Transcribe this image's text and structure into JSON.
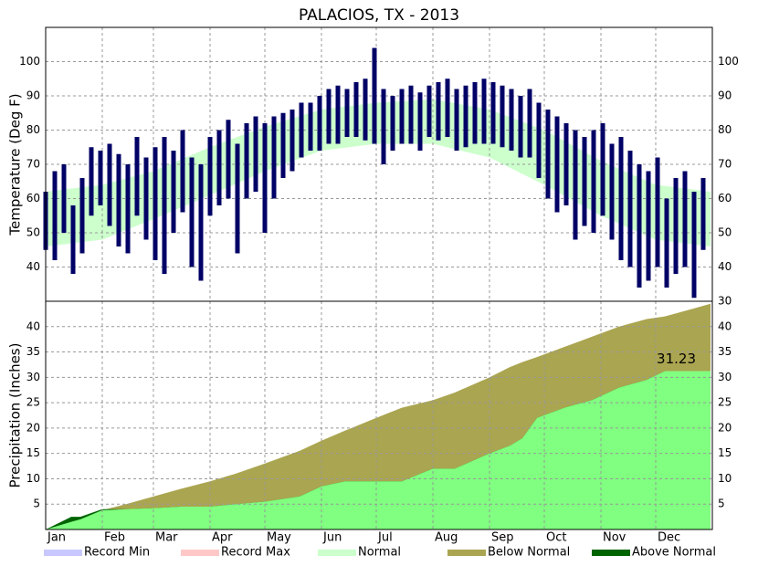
{
  "chart_data": [
    {
      "type": "bar",
      "title": "PALACIOS, TX - 2013",
      "y_label": "Temperature (Deg F)",
      "x": [
        1,
        6,
        11,
        16,
        21,
        26,
        31,
        36,
        41,
        46,
        51,
        56,
        61,
        66,
        71,
        76,
        81,
        86,
        91,
        96,
        101,
        106,
        111,
        116,
        121,
        126,
        131,
        136,
        141,
        146,
        151,
        156,
        161,
        166,
        171,
        176,
        181,
        186,
        191,
        196,
        201,
        206,
        211,
        216,
        221,
        226,
        231,
        236,
        241,
        246,
        251,
        256,
        261,
        266,
        271,
        276,
        281,
        286,
        291,
        296,
        301,
        306,
        311,
        316,
        321,
        326,
        331,
        336,
        341,
        346,
        351,
        356,
        361
      ],
      "highs": [
        62,
        68,
        70,
        58,
        66,
        75,
        74,
        76,
        73,
        70,
        78,
        72,
        75,
        78,
        74,
        80,
        72,
        70,
        78,
        80,
        83,
        76,
        82,
        84,
        82,
        84,
        85,
        86,
        88,
        88,
        90,
        92,
        93,
        92,
        94,
        95,
        104,
        92,
        90,
        92,
        93,
        91,
        93,
        94,
        95,
        92,
        93,
        94,
        95,
        94,
        93,
        92,
        90,
        92,
        88,
        86,
        84,
        82,
        80,
        78,
        80,
        82,
        76,
        78,
        74,
        70,
        68,
        72,
        60,
        66,
        68,
        62,
        66
      ],
      "lows": [
        45,
        42,
        50,
        38,
        44,
        55,
        58,
        52,
        46,
        44,
        55,
        48,
        42,
        38,
        50,
        56,
        40,
        36,
        55,
        58,
        60,
        44,
        60,
        62,
        50,
        60,
        66,
        68,
        72,
        74,
        74,
        76,
        76,
        78,
        78,
        77,
        76,
        70,
        74,
        76,
        76,
        74,
        78,
        77,
        78,
        74,
        75,
        76,
        76,
        76,
        75,
        74,
        72,
        72,
        66,
        60,
        56,
        58,
        48,
        52,
        50,
        55,
        48,
        42,
        40,
        34,
        36,
        40,
        34,
        38,
        40,
        31,
        45
      ],
      "color": "#000066",
      "normal": {
        "x": [
          1,
          32,
          60,
          91,
          121,
          152,
          182,
          213,
          244,
          274,
          305,
          335,
          365
        ],
        "high": [
          62,
          64,
          68,
          75,
          81,
          86,
          88,
          89,
          86,
          80,
          71,
          64,
          62
        ],
        "low": [
          46,
          48,
          54,
          61,
          68,
          74,
          76,
          76,
          72,
          64,
          55,
          48,
          46
        ],
        "color": "#ccffcc"
      },
      "xlim": [
        1,
        366
      ],
      "ylim": [
        30,
        110
      ],
      "yticks": [
        30,
        40,
        50,
        60,
        70,
        80,
        90,
        100
      ],
      "grid": true
    },
    {
      "type": "area",
      "y_label": "Precipitation (Inches)",
      "x": [
        1,
        15,
        20,
        32,
        45,
        60,
        75,
        91,
        105,
        121,
        140,
        152,
        165,
        182,
        196,
        213,
        225,
        244,
        255,
        262,
        270,
        285,
        300,
        315,
        330,
        340,
        365
      ],
      "actual": [
        0,
        2.5,
        2.5,
        4,
        4,
        4.2,
        4.5,
        4.5,
        5,
        5.5,
        6.5,
        8.5,
        9.5,
        9.5,
        9.5,
        12,
        12,
        15,
        16.5,
        18,
        22,
        24,
        25.5,
        28,
        29.5,
        31.23,
        31.23
      ],
      "normal": [
        0,
        1.5,
        2,
        3.8,
        5,
        6.5,
        8,
        9.5,
        11,
        13,
        15.5,
        17.5,
        19.5,
        22,
        24,
        25.5,
        27,
        30,
        32,
        33,
        34,
        36,
        38,
        40,
        41.5,
        42,
        44.5
      ],
      "actual_color": "#80ff80",
      "below_color": "#aaa550",
      "above_color": "#006400",
      "annotation": "31.23",
      "xlim": [
        1,
        366
      ],
      "ylim": [
        0,
        45
      ],
      "yticks": [
        5,
        10,
        15,
        20,
        25,
        30,
        35,
        40
      ],
      "xticks": [
        {
          "value": 1,
          "label": "Jan"
        },
        {
          "value": 32,
          "label": "Feb"
        },
        {
          "value": 60,
          "label": "Mar"
        },
        {
          "value": 91,
          "label": "Apr"
        },
        {
          "value": 121,
          "label": "May"
        },
        {
          "value": 152,
          "label": "Jun"
        },
        {
          "value": 182,
          "label": "Jul"
        },
        {
          "value": 213,
          "label": "Aug"
        },
        {
          "value": 244,
          "label": "Sep"
        },
        {
          "value": 274,
          "label": "Oct"
        },
        {
          "value": 305,
          "label": "Nov"
        },
        {
          "value": 335,
          "label": "Dec"
        }
      ],
      "grid": true
    }
  ],
  "legend": [
    {
      "name": "Record Min",
      "color": "#c8c8ff"
    },
    {
      "name": "Record Max",
      "color": "#ffc8c8"
    },
    {
      "name": "Normal",
      "color": "#ccffcc"
    },
    {
      "name": "Below Normal",
      "color": "#aaa550"
    },
    {
      "name": "Above Normal",
      "color": "#006400"
    }
  ]
}
